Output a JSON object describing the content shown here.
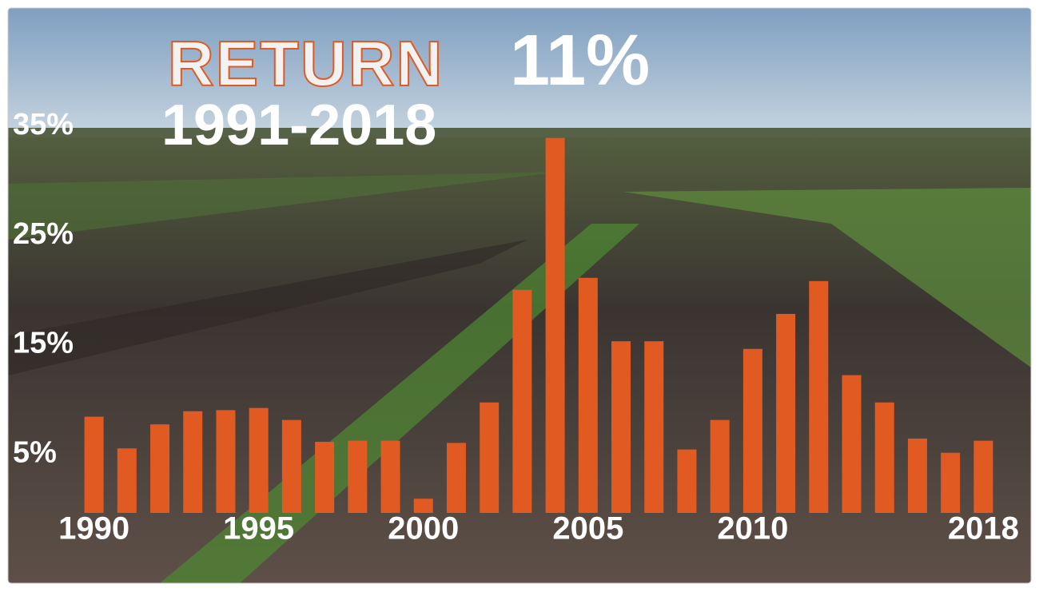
{
  "chart_data": {
    "type": "bar",
    "title": "RETURN",
    "headline_value": "11%",
    "subtitle": "1991-2018",
    "categories": [
      "1990",
      null,
      null,
      null,
      null,
      "1995",
      null,
      null,
      null,
      null,
      "2000",
      null,
      null,
      null,
      null,
      "2005",
      null,
      null,
      null,
      null,
      "2010",
      null,
      null,
      null,
      null,
      null,
      null,
      "2018"
    ],
    "values": [
      8.8,
      5.9,
      8.1,
      9.3,
      9.4,
      9.6,
      8.5,
      6.5,
      6.6,
      6.6,
      1.3,
      6.4,
      10.1,
      20.4,
      34.3,
      21.5,
      15.7,
      15.7,
      5.8,
      8.5,
      15.0,
      18.2,
      21.2,
      12.6,
      10.1,
      6.8,
      5.5,
      6.6
    ],
    "color": "#e05a22",
    "ylim": [
      0,
      35
    ],
    "yticks": [
      {
        "value": 5,
        "label": "5%"
      },
      {
        "value": 15,
        "label": "15%"
      },
      {
        "value": 25,
        "label": "25%"
      },
      {
        "value": 35,
        "label": "35%"
      }
    ],
    "grid": false
  }
}
